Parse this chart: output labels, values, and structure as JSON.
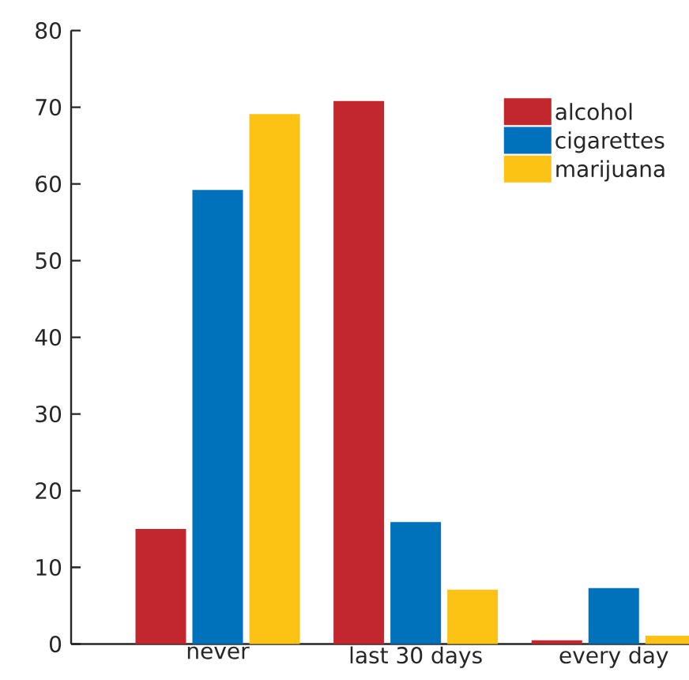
{
  "chart_data": {
    "type": "bar",
    "categories": [
      "never",
      "last 30 days",
      "every day"
    ],
    "series": [
      {
        "name": "alcohol",
        "color": "#c1272d",
        "values": [
          15,
          70.8,
          0.5
        ]
      },
      {
        "name": "cigarettes",
        "color": "#0071bb",
        "values": [
          59.2,
          15.9,
          7.3
        ]
      },
      {
        "name": "marijuana",
        "color": "#fcc314",
        "values": [
          69.1,
          7.1,
          1.1
        ]
      }
    ],
    "ylim": [
      0,
      80
    ],
    "yticks": [
      0,
      10,
      20,
      30,
      40,
      50,
      60,
      70,
      80
    ],
    "grid": false,
    "legend": "top right"
  }
}
